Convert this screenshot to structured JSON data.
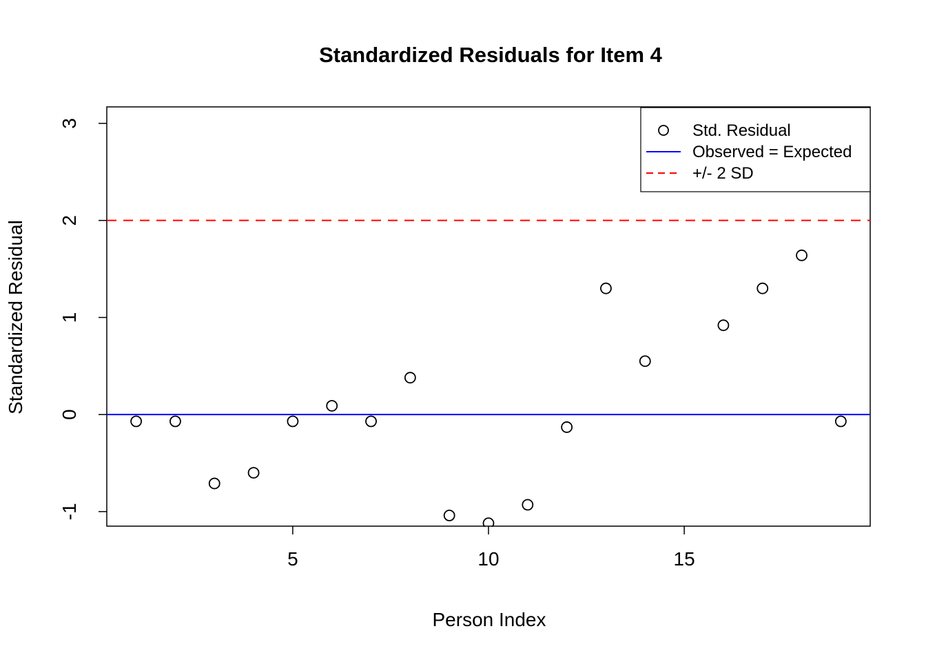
{
  "chart_data": {
    "type": "scatter",
    "title": "Standardized Residuals for Item 4",
    "xlabel": "Person Index",
    "ylabel": "Standardized Residual",
    "x": [
      1,
      2,
      3,
      4,
      5,
      6,
      7,
      8,
      9,
      10,
      11,
      12,
      13,
      14,
      16,
      17,
      18,
      19
    ],
    "y": [
      -0.07,
      -0.07,
      -0.71,
      -0.6,
      -0.07,
      0.09,
      -0.07,
      0.38,
      -1.04,
      -1.12,
      -0.93,
      -0.13,
      1.3,
      0.55,
      0.92,
      1.3,
      1.64,
      -0.07
    ],
    "xlim": [
      0.25,
      19.75
    ],
    "ylim": [
      -1.15,
      3.17
    ],
    "xticks": [
      5,
      10,
      15
    ],
    "yticks": [
      -1,
      0,
      1,
      2,
      3
    ],
    "grid": false,
    "point_color": "#000000",
    "hlines": [
      {
        "y": 0,
        "color": "#0000ff",
        "style": "solid",
        "label": "Observed = Expected"
      },
      {
        "y": 2,
        "color": "#ff0000",
        "style": "dashed",
        "label": "+/- 2 SD"
      }
    ],
    "legend": {
      "position": "top-right",
      "items": [
        {
          "label": "Std. Residual",
          "symbol": "point",
          "color": "#000000"
        },
        {
          "label": "Observed = Expected",
          "symbol": "solid-line",
          "color": "#0000ff"
        },
        {
          "label": "+/- 2 SD",
          "symbol": "dashed-line",
          "color": "#ff0000"
        }
      ]
    }
  }
}
